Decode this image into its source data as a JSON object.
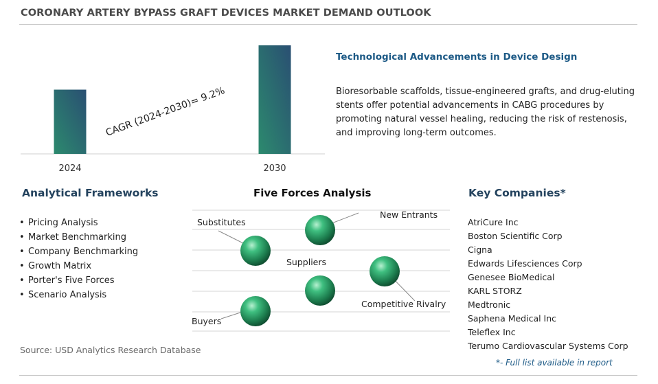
{
  "title": "CORONARY ARTERY BYPASS GRAFT DEVICES MARKET DEMAND OUTLOOK",
  "chart_data": {
    "type": "bar",
    "categories": [
      "2024",
      "2030"
    ],
    "values": [
      1.0,
      1.69
    ],
    "annotation": "CAGR (2024-2030)=  9.2%",
    "colors": [
      "#2c8a6e",
      "#2a4f72"
    ]
  },
  "tech": {
    "heading": "Technological Advancements in Device Design",
    "text": "Bioresorbable scaffolds, tissue-engineered grafts, and drug-eluting stents offer potential advancements in CABG procedures by promoting natural vessel healing, reducing the risk of restenosis, and improving long-term outcomes."
  },
  "frameworks": {
    "heading": "Analytical Frameworks",
    "items": [
      "Pricing Analysis",
      "Market Benchmarking",
      "Company Benchmarking",
      "Growth Matrix",
      "Porter's Five Forces",
      "Scenario Analysis"
    ]
  },
  "five_forces": {
    "heading": "Five Forces Analysis",
    "labels": {
      "substitutes": "Substitutes",
      "new_entrants": "New Entrants",
      "suppliers": "Suppliers",
      "competitive_rivalry": "Competitive Rivalry",
      "buyers": "Buyers"
    }
  },
  "companies": {
    "heading": "Key Companies*",
    "items": [
      "AtriCure Inc",
      "Boston Scientific Corp",
      "Cigna",
      "Edwards Lifesciences Corp",
      "Genesee BioMedical",
      "KARL STORZ",
      "Medtronic",
      "Saphena Medical Inc",
      "Teleflex Inc",
      "Terumo Cardiovascular Systems Corp"
    ],
    "note": "*- Full list available in report"
  },
  "source": "Source: USD Analytics Research Database"
}
